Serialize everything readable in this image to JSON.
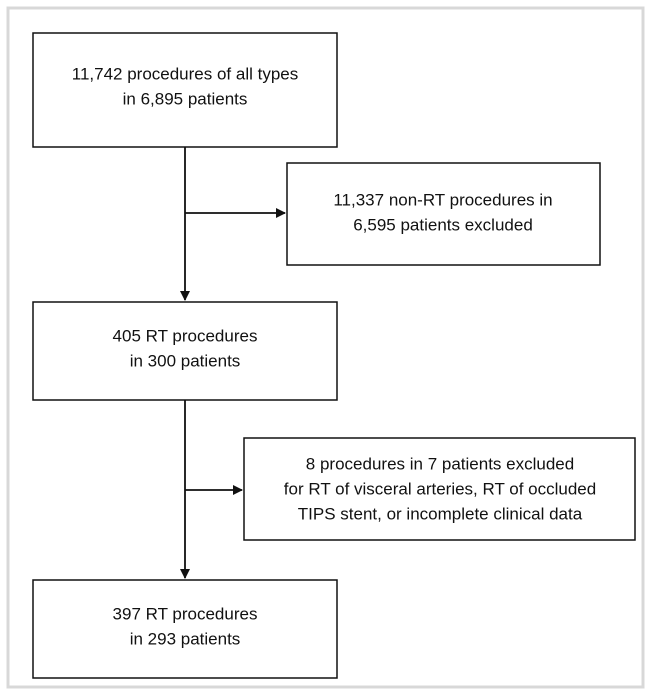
{
  "nodes": [
    {
      "lines": [
        "11,742 procedures of all types",
        "in 6,895 patients"
      ]
    },
    {
      "lines": [
        "11,337 non-RT procedures in",
        "6,595 patients excluded"
      ]
    },
    {
      "lines": [
        "405 RT procedures",
        "in 300 patients"
      ]
    },
    {
      "lines": [
        "8 procedures in 7 patients excluded",
        "for RT of visceral arteries, RT of occluded",
        "TIPS stent, or incomplete clinical data"
      ]
    },
    {
      "lines": [
        "397 RT procedures",
        "in 293 patients"
      ]
    }
  ]
}
